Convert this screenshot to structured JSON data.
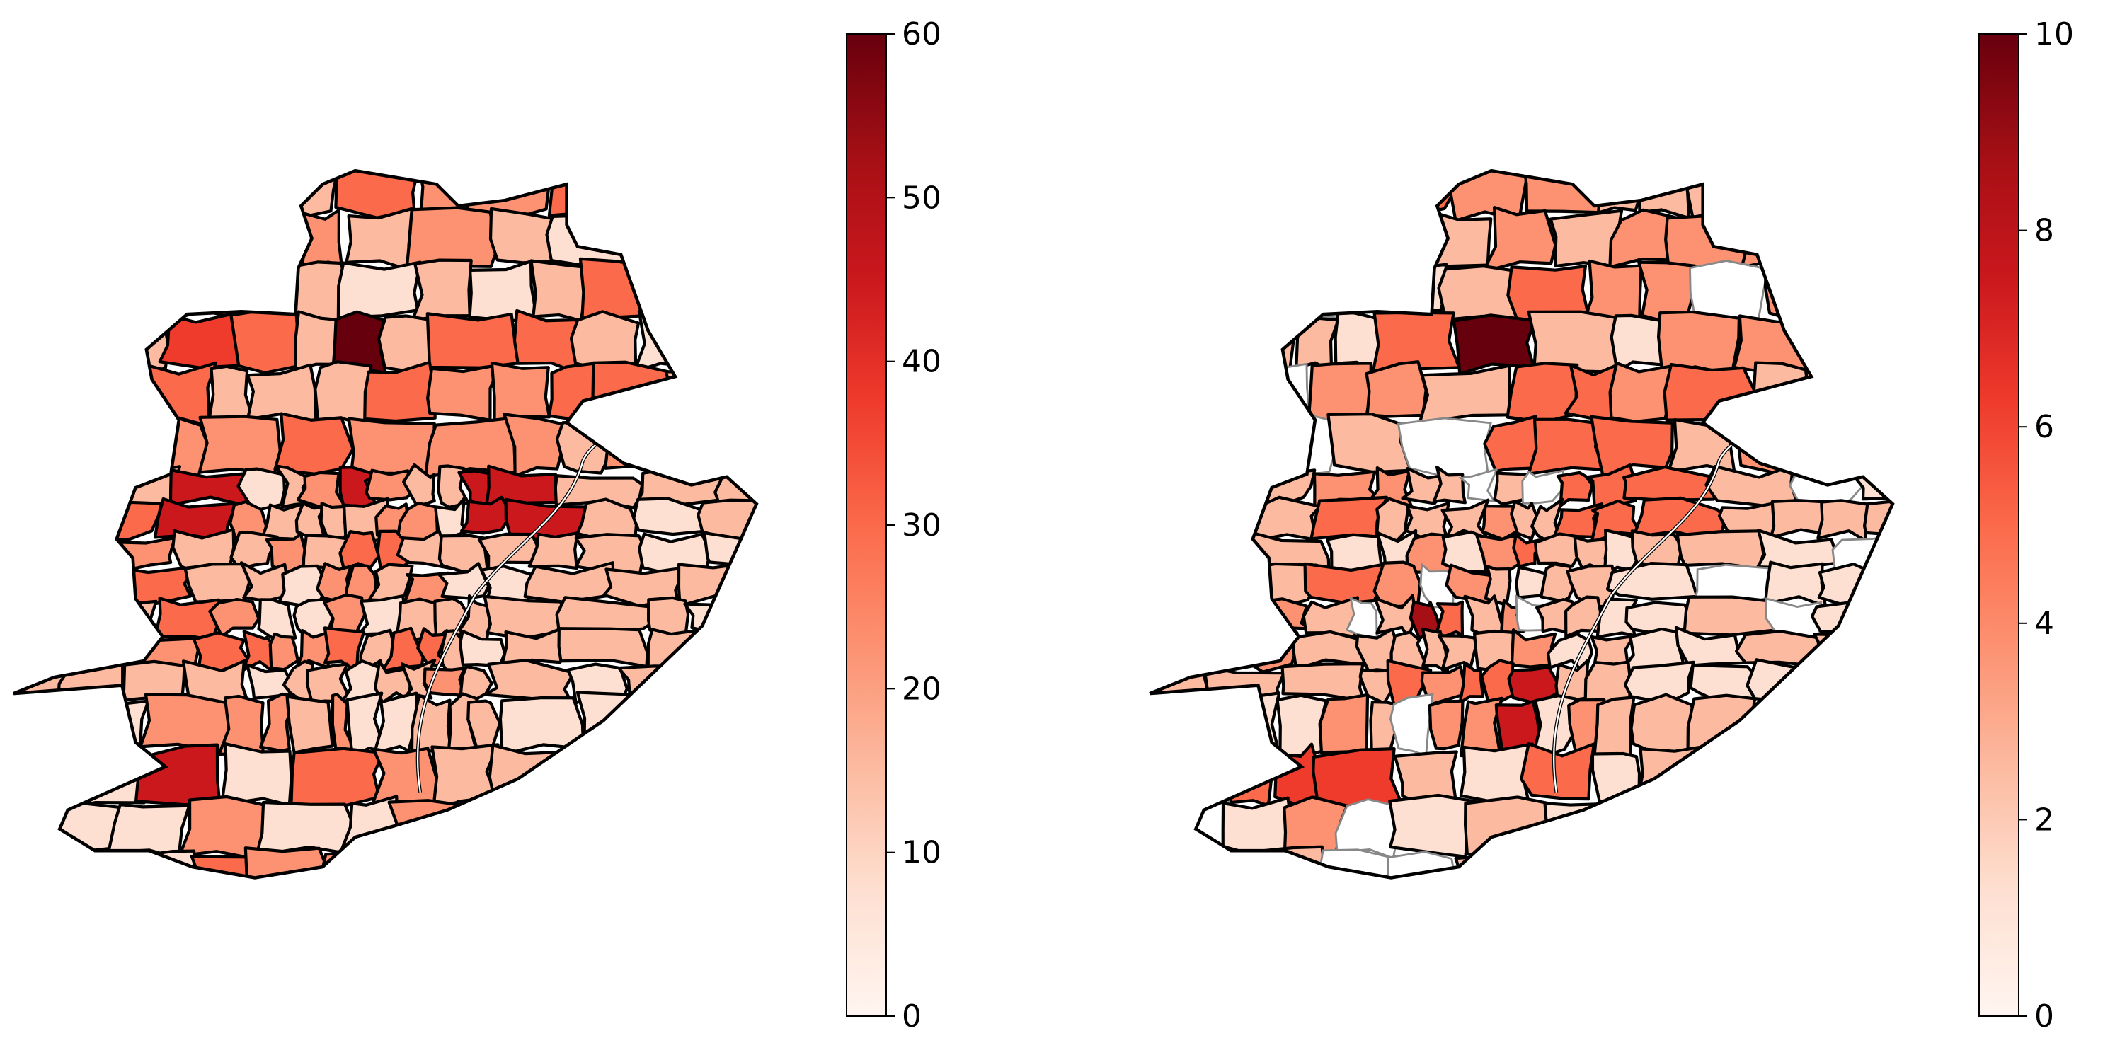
{
  "maps": [
    {
      "id": "left",
      "colorbar": {
        "min": 0,
        "max": 60,
        "ticks": [
          "0",
          "10",
          "20",
          "30",
          "40",
          "50",
          "60"
        ],
        "colormap": "Reds"
      }
    },
    {
      "id": "right",
      "colorbar": {
        "min": 0,
        "max": 10,
        "ticks": [
          "0",
          "2",
          "4",
          "6",
          "8",
          "10"
        ],
        "colormap": "Reds"
      }
    }
  ],
  "colors": {
    "reds_0": "#fff5f0",
    "reds_1": "#fee0d2",
    "reds_2": "#fcbba1",
    "reds_3": "#fc9272",
    "reds_4": "#fb6a4a",
    "reds_5": "#ef3b2c",
    "reds_6": "#cb181d",
    "reds_7": "#a50f15",
    "reds_8": "#67000d",
    "no_data": "#ffffff"
  }
}
